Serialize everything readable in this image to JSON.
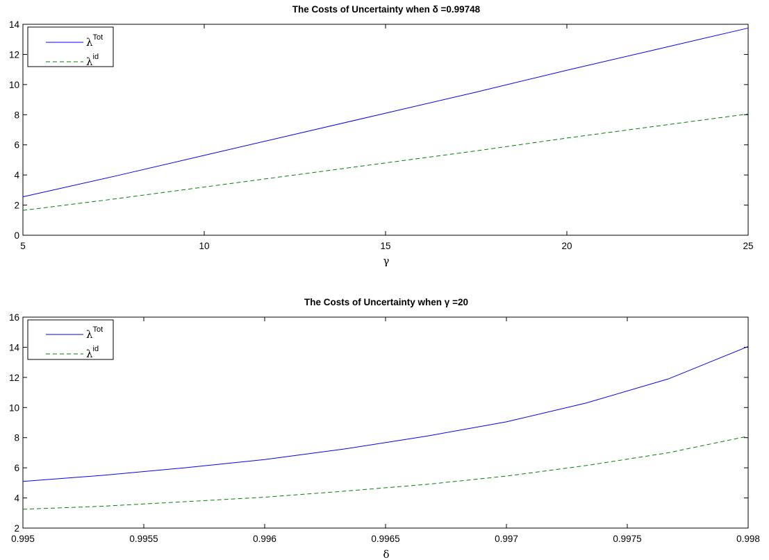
{
  "chart_data": [
    {
      "type": "line",
      "title": "The Costs of Uncertainty when δ =0.99748",
      "xlabel": "γ",
      "ylabel": "",
      "xlim": [
        5,
        25
      ],
      "ylim": [
        0,
        14
      ],
      "xticks": [
        5,
        10,
        15,
        20,
        25
      ],
      "yticks": [
        0,
        2,
        4,
        6,
        8,
        10,
        12,
        14
      ],
      "xtick_labels": [
        "5",
        "10",
        "15",
        "20",
        "25"
      ],
      "ytick_labels": [
        "0",
        "2",
        "4",
        "6",
        "8",
        "10",
        "12",
        "14"
      ],
      "legend_position": "top-left",
      "x": [
        5,
        7.5,
        10,
        12.5,
        15,
        17.5,
        20,
        22.5,
        25
      ],
      "series": [
        {
          "name": "λ",
          "name_sup": "Tot",
          "color": "#0000ff",
          "dash": "solid",
          "values": [
            2.55,
            3.9,
            5.3,
            6.7,
            8.1,
            9.5,
            10.95,
            12.35,
            13.75
          ]
        },
        {
          "name": "λ",
          "name_sup": "id",
          "color": "#008000",
          "dash": "dashed",
          "values": [
            1.65,
            2.4,
            3.2,
            4.0,
            4.8,
            5.6,
            6.45,
            7.25,
            8.05
          ]
        }
      ]
    },
    {
      "type": "line",
      "title": "The Costs of Uncertainty when γ =20",
      "xlabel": "δ",
      "ylabel": "",
      "xlim": [
        0.995,
        0.998
      ],
      "ylim": [
        2,
        16
      ],
      "xticks": [
        0.995,
        0.9955,
        0.996,
        0.9965,
        0.997,
        0.9975,
        0.998
      ],
      "yticks": [
        2,
        4,
        6,
        8,
        10,
        12,
        14,
        16
      ],
      "xtick_labels": [
        "0.995",
        "0.9955",
        "0.996",
        "0.9965",
        "0.997",
        "0.9975",
        "0.998"
      ],
      "ytick_labels": [
        "2",
        "4",
        "6",
        "8",
        "10",
        "12",
        "14",
        "16"
      ],
      "legend_position": "top-left",
      "x": [
        0.995,
        0.99533,
        0.99567,
        0.996,
        0.99633,
        0.99667,
        0.997,
        0.99733,
        0.99767,
        0.998
      ],
      "series": [
        {
          "name": "λ",
          "name_sup": "Tot",
          "color": "#0000ff",
          "dash": "solid",
          "values": [
            5.1,
            5.5,
            6.0,
            6.55,
            7.25,
            8.1,
            9.05,
            10.3,
            11.9,
            14.05
          ]
        },
        {
          "name": "λ",
          "name_sup": "id",
          "color": "#008000",
          "dash": "dashed",
          "values": [
            3.25,
            3.45,
            3.75,
            4.05,
            4.45,
            4.9,
            5.45,
            6.15,
            7.0,
            8.1
          ]
        }
      ]
    }
  ]
}
